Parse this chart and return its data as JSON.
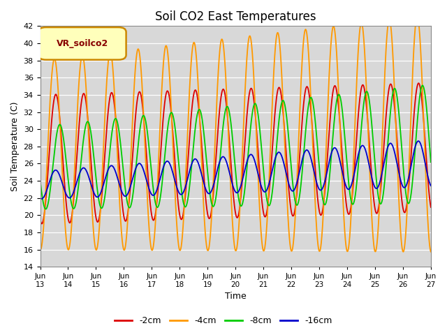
{
  "title": "Soil CO2 East Temperatures",
  "xlabel": "Time",
  "ylabel": "Soil Temperature (C)",
  "ylim": [
    14,
    42
  ],
  "yticks": [
    14,
    16,
    18,
    20,
    22,
    24,
    26,
    28,
    30,
    32,
    34,
    36,
    38,
    40,
    42
  ],
  "bg_color": "#d8d8d8",
  "series": [
    {
      "label": "-2cm",
      "color": "#dd0000",
      "lw": 1.3
    },
    {
      "label": "-4cm",
      "color": "#ff9900",
      "lw": 1.3
    },
    {
      "label": "-8cm",
      "color": "#00cc00",
      "lw": 1.3
    },
    {
      "label": "-16cm",
      "color": "#0000cc",
      "lw": 1.3
    }
  ],
  "legend_label": "VR_soilco2",
  "legend_color": "#ffffbb",
  "legend_border": "#cc8800",
  "n_days": 14,
  "day_start": 13,
  "means": [
    26.5,
    27.0,
    25.5,
    23.5
  ],
  "amplitudes": [
    7.5,
    11.0,
    4.8,
    1.6
  ],
  "trend_slopes": [
    0.1,
    0.18,
    0.2,
    0.18
  ],
  "amp_trends": [
    0.0,
    0.2,
    0.15,
    0.08
  ],
  "phase_offsets": [
    0.62,
    0.52,
    0.9,
    0.6
  ]
}
